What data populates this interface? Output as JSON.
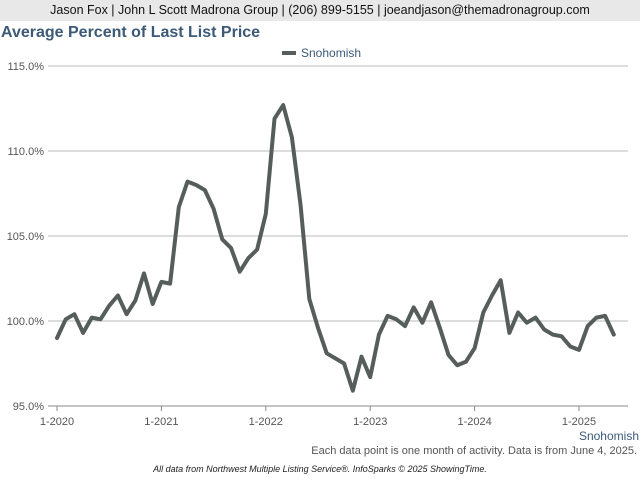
{
  "header": {
    "contact_line": "Jason Fox | John L Scott Madrona Group | (206) 899-5155 | joeandjason@themadronagroup.com"
  },
  "footer": {
    "series_label": "Snohomish",
    "note": "Each data point is one month of activity. Data is from June 4, 2025.",
    "credit": "All data from Northwest Multiple Listing Service®. InfoSparks © 2025 ShowingTime."
  },
  "colors": {
    "series": "#555e5a",
    "title": "#3c5a78",
    "grid": "#bbbbbb"
  },
  "chart_data": {
    "type": "line",
    "title": "Average Percent of Last List Price",
    "xlabel": "",
    "ylabel": "",
    "x_start": "2020-01",
    "x_end": "2025-05",
    "x_ticks": [
      "1-2020",
      "1-2021",
      "1-2022",
      "1-2023",
      "1-2024",
      "1-2025"
    ],
    "y_ticks": [
      "115.0%",
      "110.0%",
      "105.0%",
      "100.0%",
      "95.0%"
    ],
    "ylim": [
      95,
      115
    ],
    "grid": "horizontal",
    "legend": "top-center",
    "series": [
      {
        "name": "Snohomish",
        "x": [
          "2020-01",
          "2020-02",
          "2020-03",
          "2020-04",
          "2020-05",
          "2020-06",
          "2020-07",
          "2020-08",
          "2020-09",
          "2020-10",
          "2020-11",
          "2020-12",
          "2021-01",
          "2021-02",
          "2021-03",
          "2021-04",
          "2021-05",
          "2021-06",
          "2021-07",
          "2021-08",
          "2021-09",
          "2021-10",
          "2021-11",
          "2021-12",
          "2022-01",
          "2022-02",
          "2022-03",
          "2022-04",
          "2022-05",
          "2022-06",
          "2022-07",
          "2022-08",
          "2022-09",
          "2022-10",
          "2022-11",
          "2022-12",
          "2023-01",
          "2023-02",
          "2023-03",
          "2023-04",
          "2023-05",
          "2023-06",
          "2023-07",
          "2023-08",
          "2023-09",
          "2023-10",
          "2023-11",
          "2023-12",
          "2024-01",
          "2024-02",
          "2024-03",
          "2024-04",
          "2024-05",
          "2024-06",
          "2024-07",
          "2024-08",
          "2024-09",
          "2024-10",
          "2024-11",
          "2024-12",
          "2025-01",
          "2025-02",
          "2025-03",
          "2025-04",
          "2025-05"
        ],
        "values": [
          99.0,
          100.1,
          100.4,
          99.3,
          100.2,
          100.1,
          100.9,
          101.5,
          100.4,
          101.2,
          102.8,
          101.0,
          102.3,
          102.2,
          106.7,
          108.2,
          108.0,
          107.7,
          106.6,
          104.8,
          104.3,
          102.9,
          103.7,
          104.2,
          106.3,
          111.9,
          112.7,
          110.8,
          106.8,
          101.3,
          99.6,
          98.1,
          97.8,
          97.5,
          95.9,
          97.9,
          96.7,
          99.2,
          100.3,
          100.1,
          99.7,
          100.8,
          99.9,
          101.1,
          99.6,
          98.0,
          97.4,
          97.6,
          98.4,
          100.5,
          101.5,
          102.4,
          99.3,
          100.5,
          99.9,
          100.2,
          99.5,
          99.2,
          99.1,
          98.5,
          98.3,
          99.7,
          100.2,
          100.3,
          99.2
        ]
      }
    ]
  }
}
